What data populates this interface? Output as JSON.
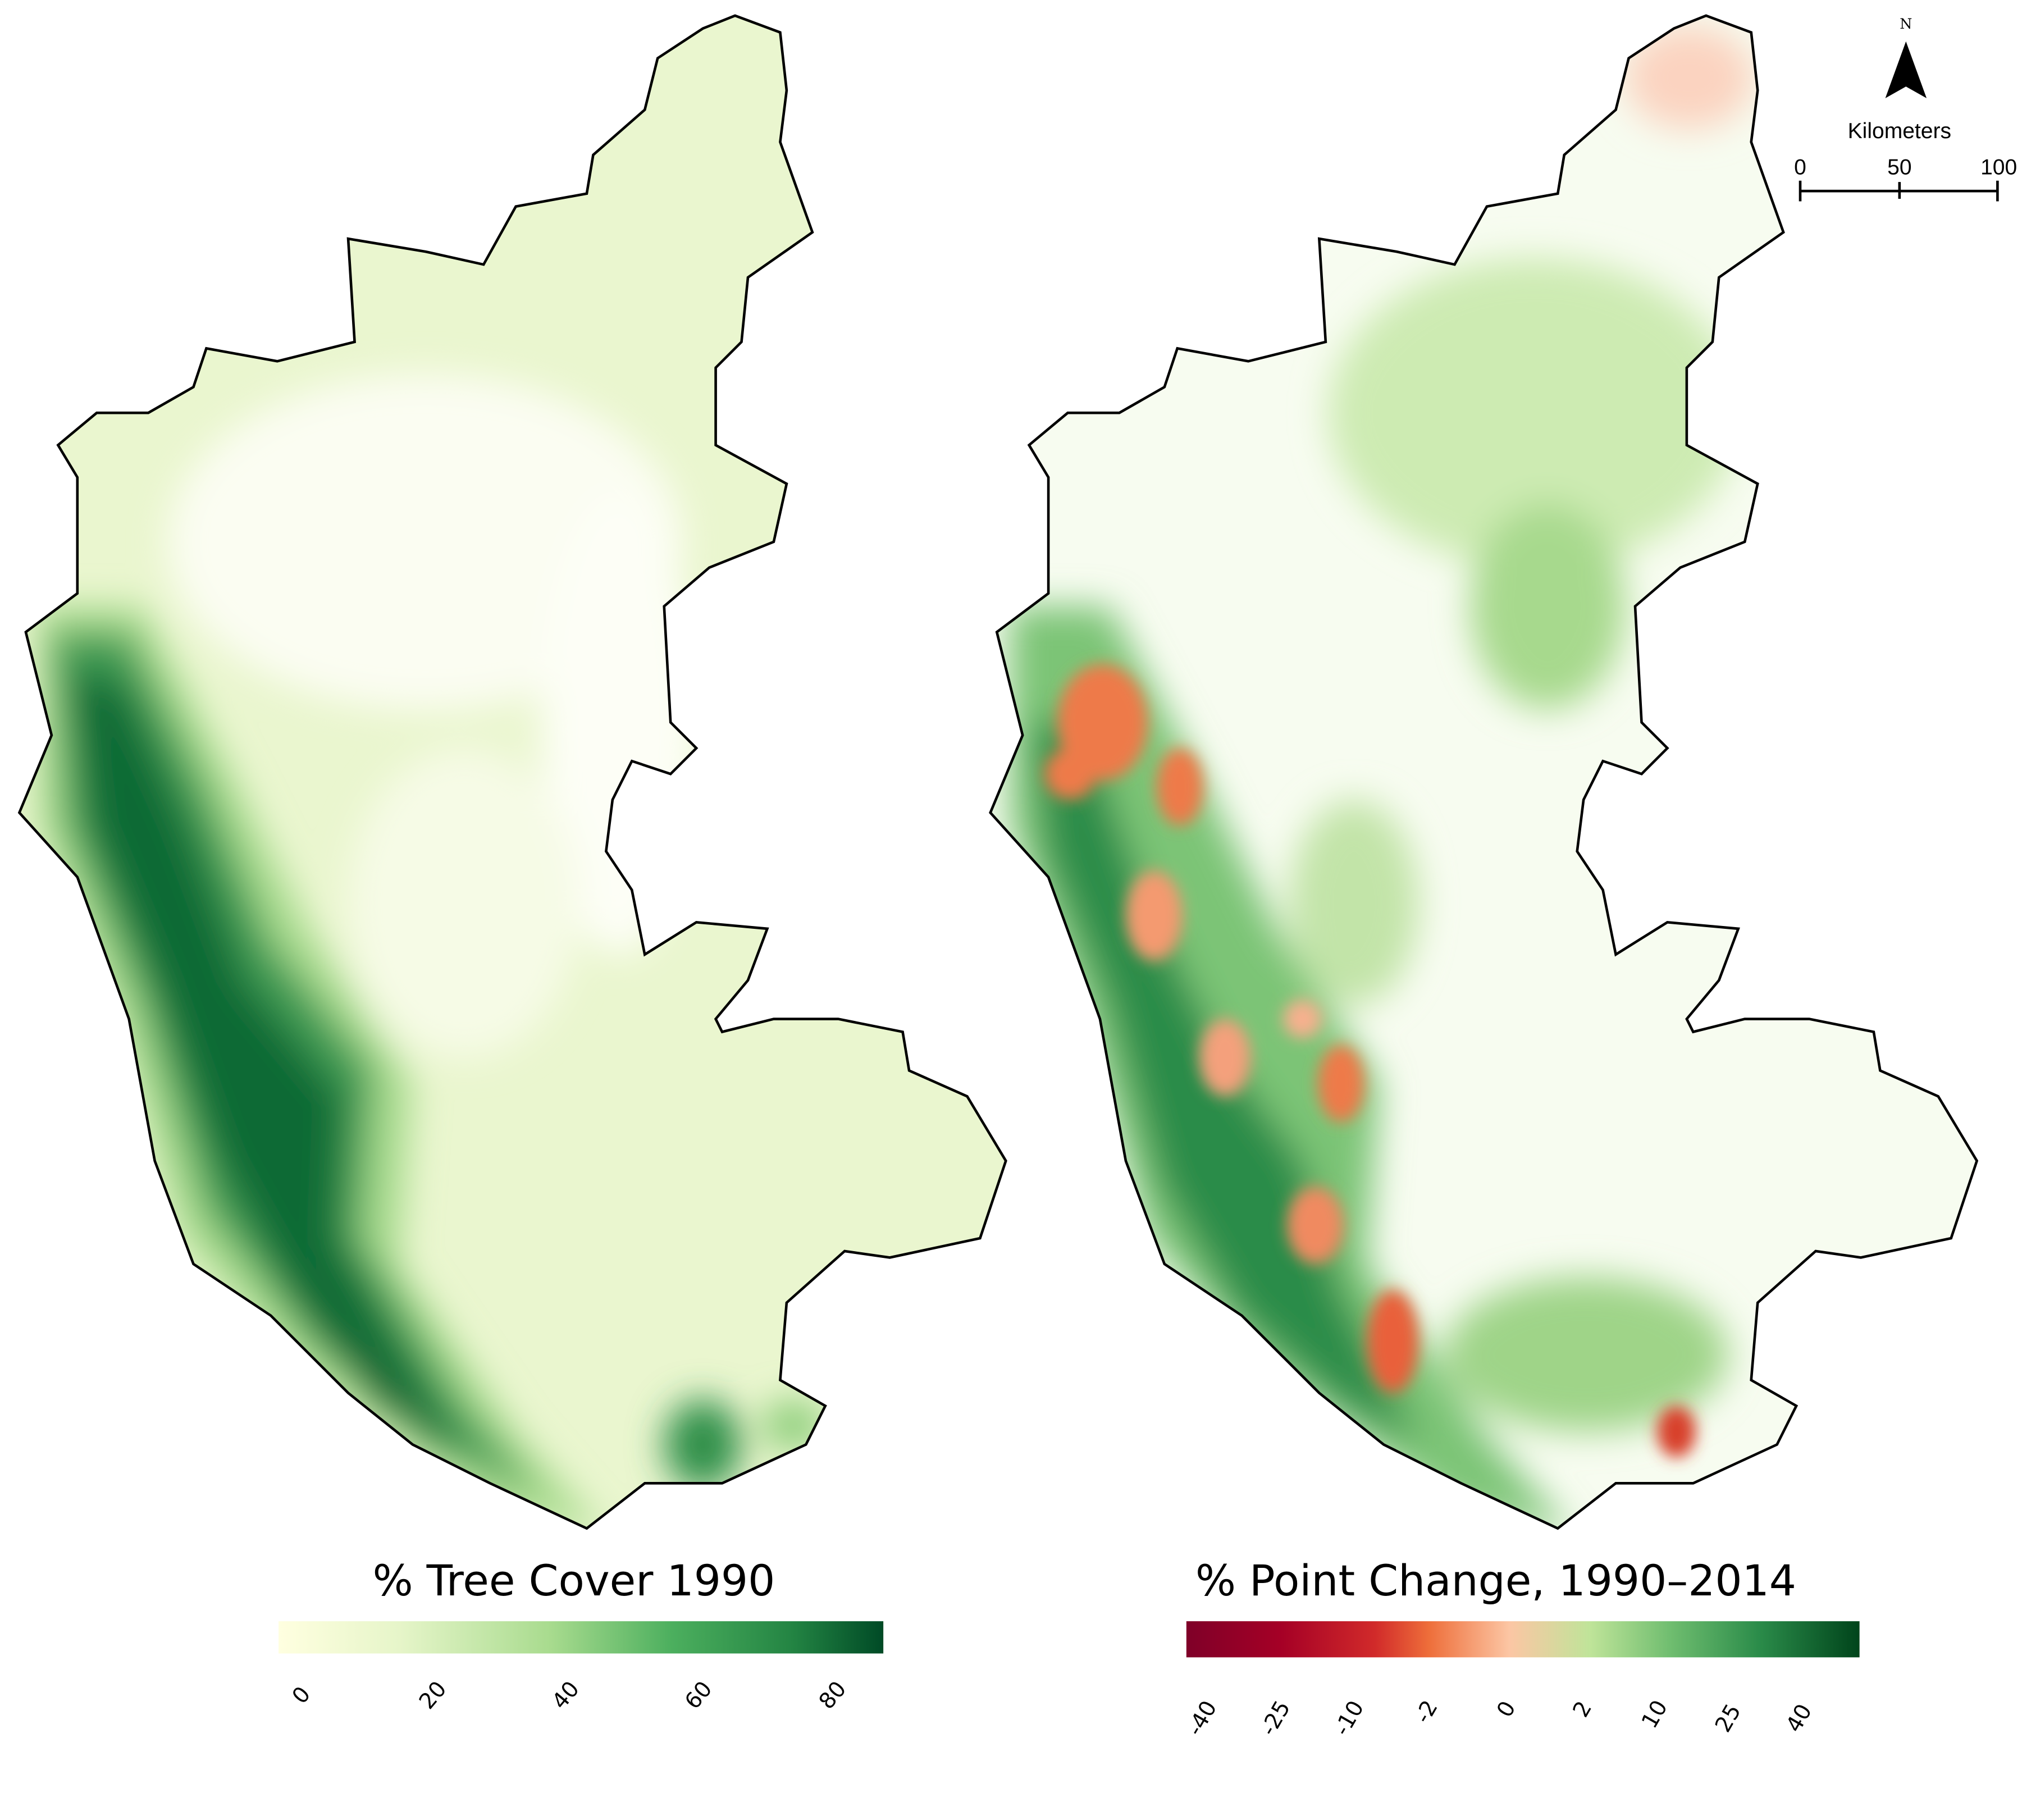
{
  "maps": [
    {
      "title": "% Tree Cover 1990",
      "legend": {
        "ticks": [
          "0",
          "20",
          "40",
          "60",
          "80"
        ],
        "colors": [
          "#ffffe0",
          "#e6f5c9",
          "#a8db8e",
          "#4caf5e",
          "#238443",
          "#004a26"
        ]
      }
    },
    {
      "title": "% Point Change, 1990–2014",
      "legend": {
        "ticks": [
          "-40",
          "-25",
          "-10",
          "-2",
          "0",
          "2",
          "10",
          "25",
          "40"
        ],
        "colors": [
          "#7f0028",
          "#a50026",
          "#d12a2a",
          "#ee6e3a",
          "#fcc6a4",
          "#bfe499",
          "#6fbd6f",
          "#2b8c4a",
          "#00441b"
        ]
      }
    }
  ],
  "north_arrow": {
    "label": "N"
  },
  "scale_bar": {
    "unit": "Kilometers",
    "ticks": [
      "0",
      "50",
      "100"
    ]
  }
}
